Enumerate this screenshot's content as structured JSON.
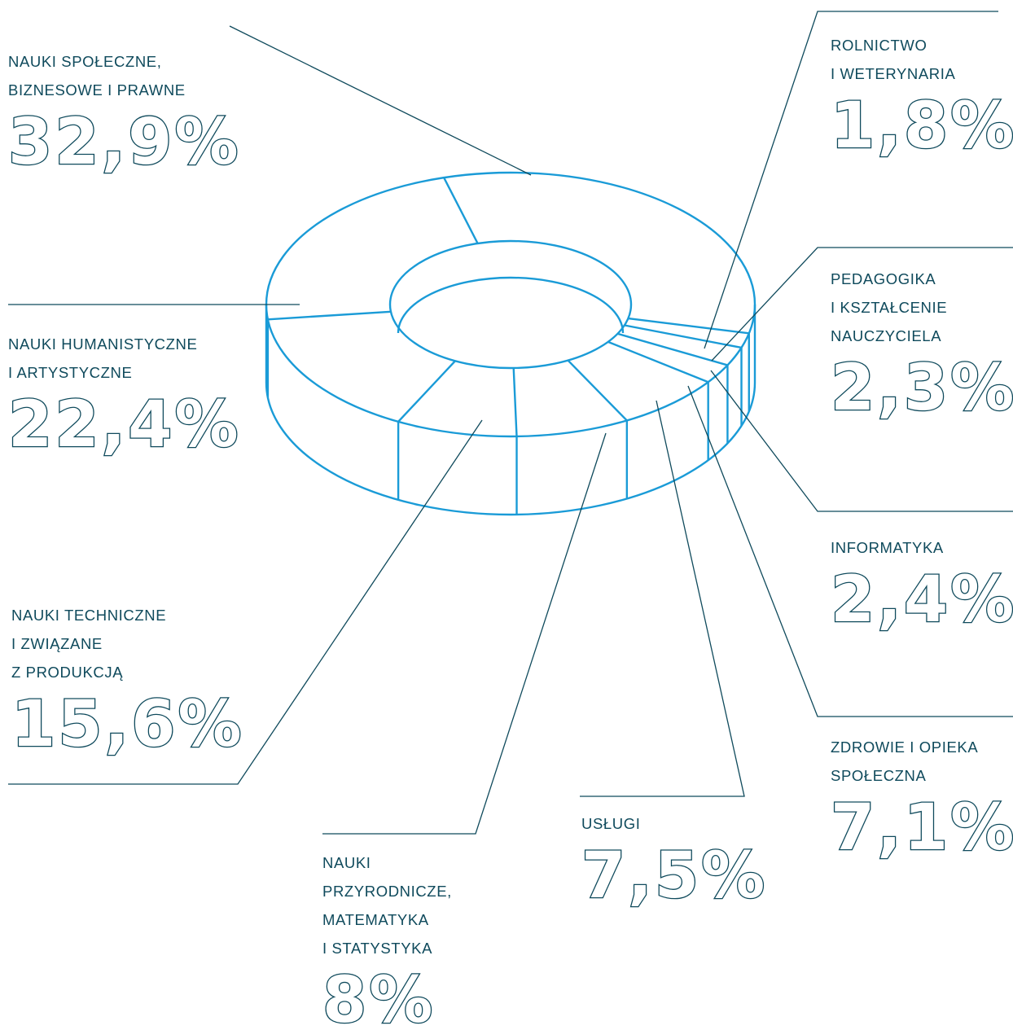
{
  "colors": {
    "donut_stroke": "#1a9bd7",
    "leader_stroke": "#0f4a5c",
    "text": "#0f4a5c"
  },
  "chart_data": {
    "type": "pie",
    "style": "3d-donut-outline",
    "slices": [
      {
        "label": "NAUKI SPOŁECZNE,\nBIZNESOWE I PRAWNE",
        "value": 32.9,
        "value_label": "32,9%"
      },
      {
        "label": "NAUKI HUMANISTYCZNE\nI ARTYSTYCZNE",
        "value": 22.4,
        "value_label": "22,4%"
      },
      {
        "label": "NAUKI TECHNICZNE\nI ZWIĄZANE\nZ PRODUKCJĄ",
        "value": 15.6,
        "value_label": "15,6%"
      },
      {
        "label": "NAUKI\nPRZYRODNICZE,\nMATEMATYKA\nI STATYSTYKA",
        "value": 8,
        "value_label": "8%"
      },
      {
        "label": "USŁUGI",
        "value": 7.5,
        "value_label": "7,5%"
      },
      {
        "label": "ZDROWIE I OPIEKA\nSPOŁECZNA",
        "value": 7.1,
        "value_label": "7,1%"
      },
      {
        "label": "INFORMATYKA",
        "value": 2.4,
        "value_label": "2,4%"
      },
      {
        "label": "PEDAGOGIKA\nI KSZTAŁCENIE\nNAUCZYCIELA",
        "value": 2.3,
        "value_label": "2,3%"
      },
      {
        "label": "ROLNICTWO\nI WETERYNARIA",
        "value": 1.8,
        "value_label": "1,8%"
      }
    ]
  }
}
